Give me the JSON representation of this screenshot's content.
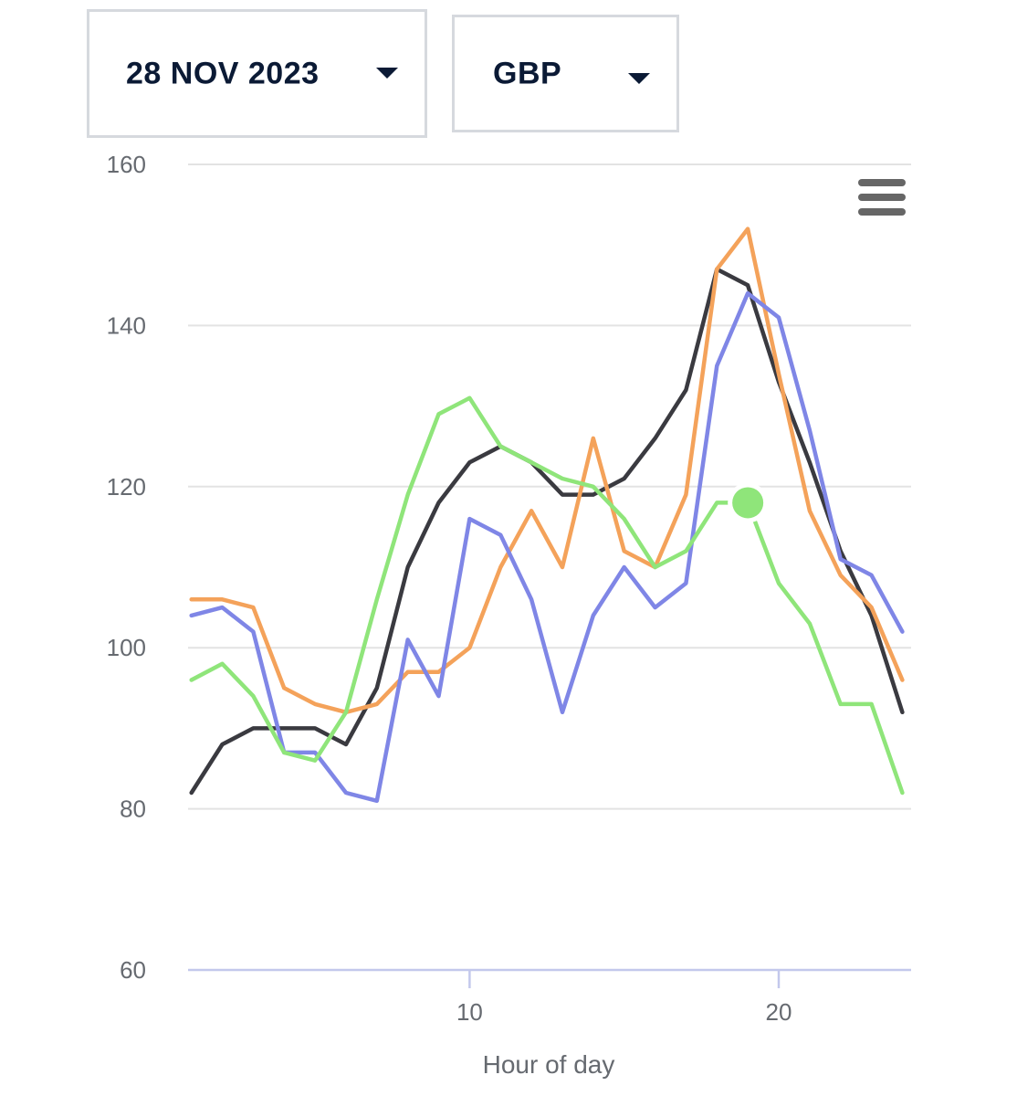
{
  "controls": {
    "date_value": "28 NOV 2023",
    "currency_value": "GBP"
  },
  "chart_data": {
    "type": "line",
    "title": "",
    "xlabel": "Hour of day",
    "ylabel": "",
    "xlim": [
      1,
      24
    ],
    "ylim": [
      60,
      160
    ],
    "y_ticks": [
      60,
      80,
      100,
      120,
      140,
      160
    ],
    "x_ticks": [
      10,
      20
    ],
    "y_tick_labels": [
      "60",
      "80",
      "100",
      "120",
      "140",
      "160"
    ],
    "x_tick_labels": [
      "10",
      "20"
    ],
    "grid": true,
    "x": [
      1,
      2,
      3,
      4,
      5,
      6,
      7,
      8,
      9,
      10,
      11,
      12,
      13,
      14,
      15,
      16,
      17,
      18,
      19,
      20,
      21,
      22,
      23,
      24
    ],
    "series": [
      {
        "color": "#3a3a40",
        "values": [
          82,
          88,
          90,
          90,
          90,
          88,
          95,
          110,
          118,
          123,
          125,
          123,
          119,
          119,
          121,
          126,
          132,
          147,
          145,
          133,
          123,
          112,
          104,
          92
        ]
      },
      {
        "color": "#f4a25a",
        "values": [
          106,
          106,
          105,
          95,
          93,
          92,
          93,
          97,
          97,
          100,
          110,
          117,
          110,
          126,
          112,
          110,
          119,
          147,
          152,
          134,
          117,
          109,
          105,
          96
        ]
      },
      {
        "color": "#7f86e6",
        "values": [
          104,
          105,
          102,
          87,
          87,
          82,
          81,
          101,
          94,
          116,
          114,
          106,
          92,
          104,
          110,
          105,
          108,
          135,
          144,
          141,
          127,
          111,
          109,
          102
        ]
      },
      {
        "color": "#8fe57a",
        "values": [
          96,
          98,
          94,
          87,
          86,
          92,
          106,
          119,
          129,
          131,
          125,
          123,
          121,
          120,
          116,
          110,
          112,
          118,
          118,
          108,
          103,
          93,
          93,
          82
        ],
        "highlight_index": 18
      }
    ]
  },
  "menu": {
    "icon": "hamburger-menu-icon"
  }
}
